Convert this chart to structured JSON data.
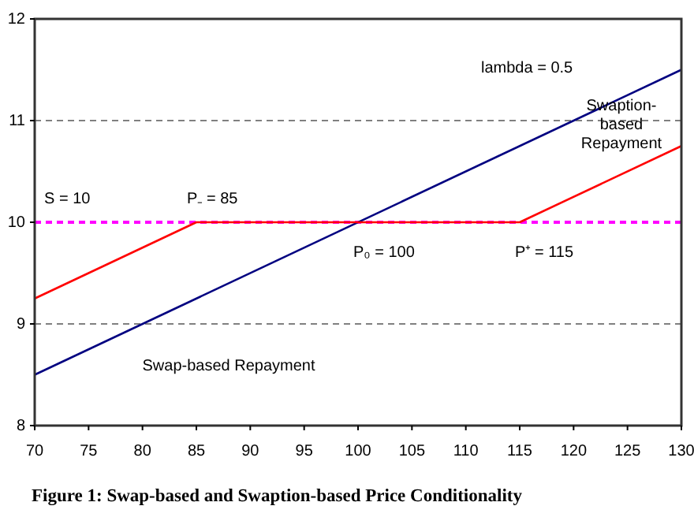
{
  "chart_data": {
    "type": "line",
    "title": "Figure 1: Swap-based and Swaption-based Price Conditionality",
    "xlim": [
      70,
      130
    ],
    "xticks": [
      70,
      75,
      80,
      85,
      90,
      95,
      100,
      105,
      110,
      115,
      120,
      125,
      130
    ],
    "ylim": [
      8,
      12
    ],
    "yticks": [
      8,
      9,
      10,
      11,
      12
    ],
    "grid": false,
    "marker": "none",
    "line_style": "solid",
    "series": [
      {
        "color": "#000080",
        "x": [
          70,
          130
        ],
        "values": [
          8.5,
          11.5
        ]
      },
      {
        "color": "#ff0000",
        "x": [
          70,
          85,
          115,
          130
        ],
        "values": [
          9.25,
          10,
          10,
          10.75
        ]
      }
    ],
    "ref_lines": [
      {
        "axis": "y",
        "value": 9,
        "color": "#808080",
        "line_style": "dashed"
      },
      {
        "axis": "y",
        "value": 11,
        "color": "#808080",
        "line_style": "dashed"
      },
      {
        "axis": "y",
        "value": 10,
        "label": "S = 10",
        "color": "#ff00ff",
        "line_style": "dashed"
      }
    ],
    "annotations": [
      "lambda = 0.5",
      "Swaption-based Repayment",
      "Swap-based Repayment",
      {
        "text": "P₋ = 85",
        "x": 85,
        "y": 10
      },
      {
        "text": "P₀ = 100",
        "x": 100,
        "y": 10
      },
      {
        "text": "P⁺ = 115",
        "x": 115,
        "y": 10
      }
    ]
  }
}
